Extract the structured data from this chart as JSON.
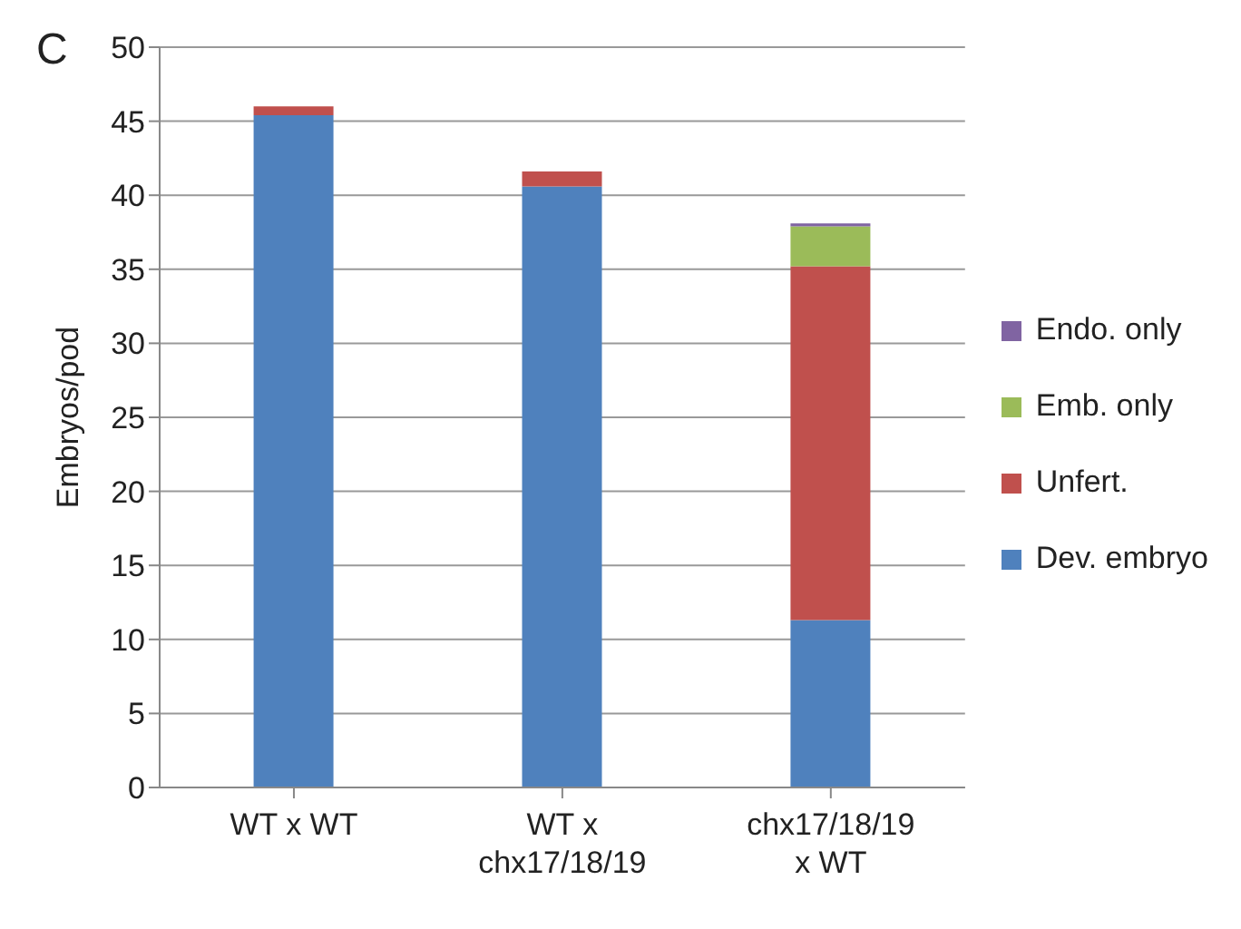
{
  "chart_data": {
    "type": "bar",
    "title": "C",
    "ylabel": "Embryos/pod",
    "categories": [
      "WT x WT",
      "WT x\nchx17/18/19",
      "chx17/18/19\nx WT"
    ],
    "stacked": true,
    "series": [
      {
        "name": "Dev. embryo",
        "color": "#4f81bd",
        "values": [
          45.4,
          40.6,
          11.3
        ]
      },
      {
        "name": "Unfert.",
        "color": "#c0504d",
        "values": [
          0.6,
          1.0,
          23.9
        ]
      },
      {
        "name": "Emb. only",
        "color": "#9bbb59",
        "values": [
          null,
          null,
          2.7
        ]
      },
      {
        "name": "Endo. only",
        "color": "#8064a2",
        "values": [
          null,
          null,
          0.2
        ]
      }
    ],
    "ylim": [
      0,
      50
    ],
    "yticks": [
      0,
      5,
      10,
      15,
      20,
      25,
      30,
      35,
      40,
      45,
      50
    ],
    "grid": "y",
    "legend": "right"
  }
}
